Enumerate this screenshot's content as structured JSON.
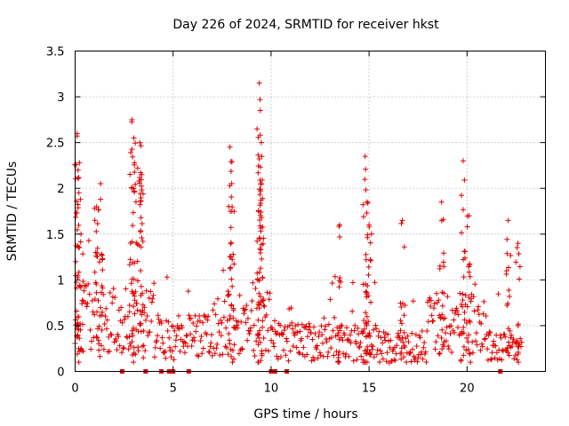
{
  "chart_data": {
    "type": "scatter",
    "title": "Day 226 of 2024, SRMTID for receiver hkst",
    "xlabel": "GPS time / hours",
    "ylabel": "SRMTID / TECUs",
    "xlim": [
      0,
      24
    ],
    "ylim": [
      0,
      3.5
    ],
    "xticks": [
      0,
      5,
      10,
      15,
      20
    ],
    "xtick_labels": [
      "0",
      "5",
      "10",
      "15",
      "20"
    ],
    "yticks": [
      0,
      0.5,
      1,
      1.5,
      2,
      2.5,
      3,
      3.5
    ],
    "ytick_labels": [
      "0",
      "0.5",
      "1",
      "1.5",
      "2",
      "2.5",
      "3",
      "3.5"
    ],
    "grid": true,
    "marker": "plus",
    "color": "#e00000",
    "peaks": [
      {
        "t": 0.1,
        "v": 2.6
      },
      {
        "t": 0.15,
        "v": 2.2
      },
      {
        "t": 0.3,
        "v": 1.5
      },
      {
        "t": 1.3,
        "v": 2.05
      },
      {
        "t": 1.1,
        "v": 1.8
      },
      {
        "t": 2.9,
        "v": 2.75
      },
      {
        "t": 3.0,
        "v": 2.55
      },
      {
        "t": 3.3,
        "v": 2.5
      },
      {
        "t": 3.4,
        "v": 2.15
      },
      {
        "t": 7.9,
        "v": 2.45
      },
      {
        "t": 8.0,
        "v": 1.75
      },
      {
        "t": 9.4,
        "v": 3.15
      },
      {
        "t": 9.45,
        "v": 2.85
      },
      {
        "t": 9.5,
        "v": 2.5
      },
      {
        "t": 13.5,
        "v": 1.6
      },
      {
        "t": 14.8,
        "v": 2.35
      },
      {
        "t": 14.9,
        "v": 1.85
      },
      {
        "t": 15.0,
        "v": 1.6
      },
      {
        "t": 16.7,
        "v": 1.65
      },
      {
        "t": 18.7,
        "v": 1.85
      },
      {
        "t": 19.8,
        "v": 2.3
      },
      {
        "t": 20.1,
        "v": 1.7
      },
      {
        "t": 22.1,
        "v": 1.65
      },
      {
        "t": 22.6,
        "v": 1.4
      }
    ],
    "zero_values_at": [
      2.4,
      3.6,
      4.4,
      4.8,
      5.0,
      5.8,
      10.0,
      10.2,
      10.8,
      21.7
    ]
  }
}
